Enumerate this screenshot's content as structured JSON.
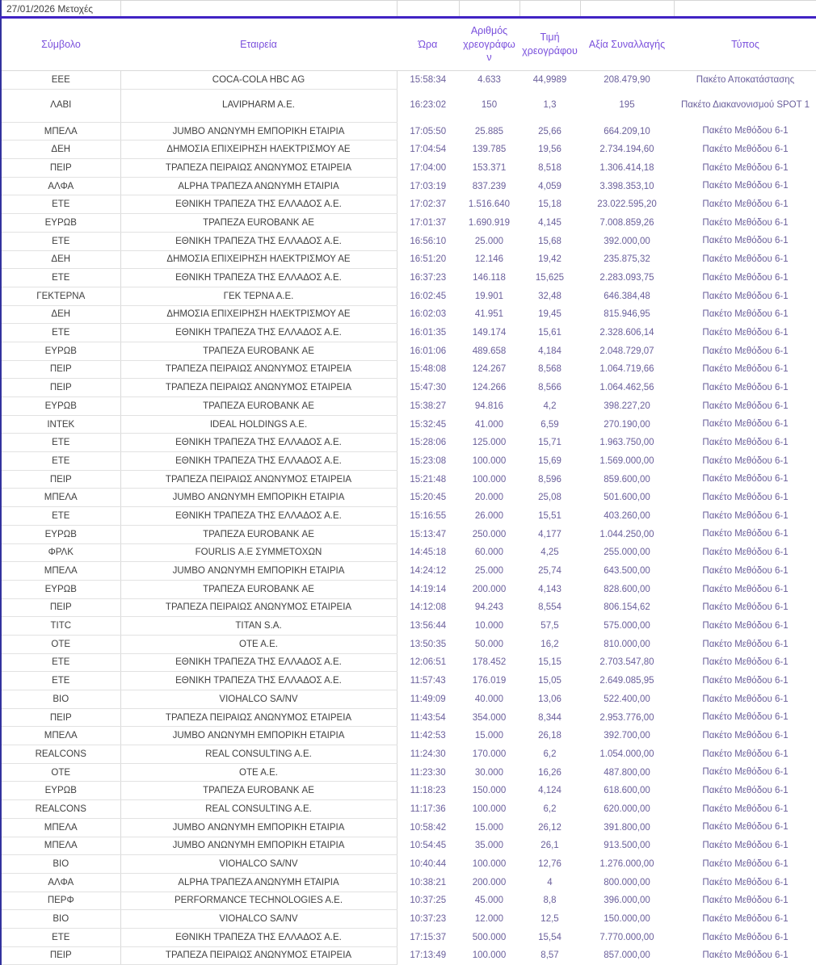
{
  "top_bar": {
    "label": "27/01/2026 Μετοχές"
  },
  "colors": {
    "rule": "#4123c4",
    "header_text": "#7a50dc",
    "numeric_text": "#6a5f9b",
    "body_text": "#404040",
    "grid_line": "#d9d9d9",
    "left_edge": "#32329e"
  },
  "table": {
    "columns": [
      "Σύμβολο",
      "Εταιρεία",
      "Ώρα",
      "Αριθμός χρεογράφων",
      "Τιμή χρεογράφου",
      "Αξία Συναλλαγής",
      "Τύπος"
    ],
    "rows": [
      [
        "ΕΕΕ",
        "COCA-COLA HBC AG",
        "15:58:34",
        "4.633",
        "44,9989",
        "208.479,90",
        "Πακέτο Αποκατάστασης"
      ],
      [
        "ΛΑΒΙ",
        "LAVIPHARM A.E.",
        "16:23:02",
        "150",
        "1,3",
        "195",
        "Πακέτο Διακανονισμού SPOT 1"
      ],
      [
        "ΜΠΕΛΑ",
        "JUMBO ΑΝΩΝΥΜΗ ΕΜΠΟΡΙΚΗ ΕΤΑΙΡΙΑ",
        "17:05:50",
        "25.885",
        "25,66",
        "664.209,10",
        "Πακέτο Μεθόδου 6-1"
      ],
      [
        "ΔΕΗ",
        "ΔΗΜΟΣΙΑ ΕΠΙΧΕΙΡΗΣΗ ΗΛΕΚΤΡΙΣΜΟΥ ΑΕ",
        "17:04:54",
        "139.785",
        "19,56",
        "2.734.194,60",
        "Πακέτο Μεθόδου 6-1"
      ],
      [
        "ΠΕΙΡ",
        "ΤΡΑΠΕΖΑ ΠΕΙΡΑΙΩΣ ΑΝΩΝΥΜΟΣ ΕΤΑΙΡΕΙΑ",
        "17:04:00",
        "153.371",
        "8,518",
        "1.306.414,18",
        "Πακέτο Μεθόδου 6-1"
      ],
      [
        "ΑΛΦΑ",
        "ALPHA ΤΡΑΠΕΖΑ ΑΝΩΝΥΜΗ ΕΤΑΙΡΙΑ",
        "17:03:19",
        "837.239",
        "4,059",
        "3.398.353,10",
        "Πακέτο Μεθόδου 6-1"
      ],
      [
        "ΕΤΕ",
        "ΕΘΝΙΚΗ ΤΡΑΠΕΖΑ ΤΗΣ ΕΛΛΑΔΟΣ Α.Ε.",
        "17:02:37",
        "1.516.640",
        "15,18",
        "23.022.595,20",
        "Πακέτο Μεθόδου 6-1"
      ],
      [
        "ΕΥΡΩΒ",
        "ΤΡΑΠΕΖΑ EUROBANK ΑΕ",
        "17:01:37",
        "1.690.919",
        "4,145",
        "7.008.859,26",
        "Πακέτο Μεθόδου 6-1"
      ],
      [
        "ΕΤΕ",
        "ΕΘΝΙΚΗ ΤΡΑΠΕΖΑ ΤΗΣ ΕΛΛΑΔΟΣ Α.Ε.",
        "16:56:10",
        "25.000",
        "15,68",
        "392.000,00",
        "Πακέτο Μεθόδου 6-1"
      ],
      [
        "ΔΕΗ",
        "ΔΗΜΟΣΙΑ ΕΠΙΧΕΙΡΗΣΗ ΗΛΕΚΤΡΙΣΜΟΥ ΑΕ",
        "16:51:20",
        "12.146",
        "19,42",
        "235.875,32",
        "Πακέτο Μεθόδου 6-1"
      ],
      [
        "ΕΤΕ",
        "ΕΘΝΙΚΗ ΤΡΑΠΕΖΑ ΤΗΣ ΕΛΛΑΔΟΣ Α.Ε.",
        "16:37:23",
        "146.118",
        "15,625",
        "2.283.093,75",
        "Πακέτο Μεθόδου 6-1"
      ],
      [
        "ΓΕΚΤΕΡΝΑ",
        "ΓΕΚ ΤΕΡΝΑ Α.Ε.",
        "16:02:45",
        "19.901",
        "32,48",
        "646.384,48",
        "Πακέτο Μεθόδου 6-1"
      ],
      [
        "ΔΕΗ",
        "ΔΗΜΟΣΙΑ ΕΠΙΧΕΙΡΗΣΗ ΗΛΕΚΤΡΙΣΜΟΥ ΑΕ",
        "16:02:03",
        "41.951",
        "19,45",
        "815.946,95",
        "Πακέτο Μεθόδου 6-1"
      ],
      [
        "ΕΤΕ",
        "ΕΘΝΙΚΗ ΤΡΑΠΕΖΑ ΤΗΣ ΕΛΛΑΔΟΣ Α.Ε.",
        "16:01:35",
        "149.174",
        "15,61",
        "2.328.606,14",
        "Πακέτο Μεθόδου 6-1"
      ],
      [
        "ΕΥΡΩΒ",
        "ΤΡΑΠΕΖΑ EUROBANK ΑΕ",
        "16:01:06",
        "489.658",
        "4,184",
        "2.048.729,07",
        "Πακέτο Μεθόδου 6-1"
      ],
      [
        "ΠΕΙΡ",
        "ΤΡΑΠΕΖΑ ΠΕΙΡΑΙΩΣ ΑΝΩΝΥΜΟΣ ΕΤΑΙΡΕΙΑ",
        "15:48:08",
        "124.267",
        "8,568",
        "1.064.719,66",
        "Πακέτο Μεθόδου 6-1"
      ],
      [
        "ΠΕΙΡ",
        "ΤΡΑΠΕΖΑ ΠΕΙΡΑΙΩΣ ΑΝΩΝΥΜΟΣ ΕΤΑΙΡΕΙΑ",
        "15:47:30",
        "124.266",
        "8,566",
        "1.064.462,56",
        "Πακέτο Μεθόδου 6-1"
      ],
      [
        "ΕΥΡΩΒ",
        "ΤΡΑΠΕΖΑ EUROBANK ΑΕ",
        "15:38:27",
        "94.816",
        "4,2",
        "398.227,20",
        "Πακέτο Μεθόδου 6-1"
      ],
      [
        "ΙΝΤΕΚ",
        "IDEAL HOLDINGS A.E.",
        "15:32:45",
        "41.000",
        "6,59",
        "270.190,00",
        "Πακέτο Μεθόδου 6-1"
      ],
      [
        "ΕΤΕ",
        "ΕΘΝΙΚΗ ΤΡΑΠΕΖΑ ΤΗΣ ΕΛΛΑΔΟΣ Α.Ε.",
        "15:28:06",
        "125.000",
        "15,71",
        "1.963.750,00",
        "Πακέτο Μεθόδου 6-1"
      ],
      [
        "ΕΤΕ",
        "ΕΘΝΙΚΗ ΤΡΑΠΕΖΑ ΤΗΣ ΕΛΛΑΔΟΣ Α.Ε.",
        "15:23:08",
        "100.000",
        "15,69",
        "1.569.000,00",
        "Πακέτο Μεθόδου 6-1"
      ],
      [
        "ΠΕΙΡ",
        "ΤΡΑΠΕΖΑ ΠΕΙΡΑΙΩΣ ΑΝΩΝΥΜΟΣ ΕΤΑΙΡΕΙΑ",
        "15:21:48",
        "100.000",
        "8,596",
        "859.600,00",
        "Πακέτο Μεθόδου 6-1"
      ],
      [
        "ΜΠΕΛΑ",
        "JUMBO ΑΝΩΝΥΜΗ ΕΜΠΟΡΙΚΗ ΕΤΑΙΡΙΑ",
        "15:20:45",
        "20.000",
        "25,08",
        "501.600,00",
        "Πακέτο Μεθόδου 6-1"
      ],
      [
        "ΕΤΕ",
        "ΕΘΝΙΚΗ ΤΡΑΠΕΖΑ ΤΗΣ ΕΛΛΑΔΟΣ Α.Ε.",
        "15:16:55",
        "26.000",
        "15,51",
        "403.260,00",
        "Πακέτο Μεθόδου 6-1"
      ],
      [
        "ΕΥΡΩΒ",
        "ΤΡΑΠΕΖΑ EUROBANK ΑΕ",
        "15:13:47",
        "250.000",
        "4,177",
        "1.044.250,00",
        "Πακέτο Μεθόδου 6-1"
      ],
      [
        "ΦΡΛΚ",
        "FOURLIS Α.Ε ΣΥΜΜΕΤΟΧΩΝ",
        "14:45:18",
        "60.000",
        "4,25",
        "255.000,00",
        "Πακέτο Μεθόδου 6-1"
      ],
      [
        "ΜΠΕΛΑ",
        "JUMBO ΑΝΩΝΥΜΗ ΕΜΠΟΡΙΚΗ ΕΤΑΙΡΙΑ",
        "14:24:12",
        "25.000",
        "25,74",
        "643.500,00",
        "Πακέτο Μεθόδου 6-1"
      ],
      [
        "ΕΥΡΩΒ",
        "ΤΡΑΠΕΖΑ EUROBANK ΑΕ",
        "14:19:14",
        "200.000",
        "4,143",
        "828.600,00",
        "Πακέτο Μεθόδου 6-1"
      ],
      [
        "ΠΕΙΡ",
        "ΤΡΑΠΕΖΑ ΠΕΙΡΑΙΩΣ ΑΝΩΝΥΜΟΣ ΕΤΑΙΡΕΙΑ",
        "14:12:08",
        "94.243",
        "8,554",
        "806.154,62",
        "Πακέτο Μεθόδου 6-1"
      ],
      [
        "ΤΙΤC",
        "TITAN S.A.",
        "13:56:44",
        "10.000",
        "57,5",
        "575.000,00",
        "Πακέτο Μεθόδου 6-1"
      ],
      [
        "ΟΤΕ",
        "ΟΤΕ Α.Ε.",
        "13:50:35",
        "50.000",
        "16,2",
        "810.000,00",
        "Πακέτο Μεθόδου 6-1"
      ],
      [
        "ΕΤΕ",
        "ΕΘΝΙΚΗ ΤΡΑΠΕΖΑ ΤΗΣ ΕΛΛΑΔΟΣ Α.Ε.",
        "12:06:51",
        "178.452",
        "15,15",
        "2.703.547,80",
        "Πακέτο Μεθόδου 6-1"
      ],
      [
        "ΕΤΕ",
        "ΕΘΝΙΚΗ ΤΡΑΠΕΖΑ ΤΗΣ ΕΛΛΑΔΟΣ Α.Ε.",
        "11:57:43",
        "176.019",
        "15,05",
        "2.649.085,95",
        "Πακέτο Μεθόδου 6-1"
      ],
      [
        "ΒΙΟ",
        "VIOHALCO SA/NV",
        "11:49:09",
        "40.000",
        "13,06",
        "522.400,00",
        "Πακέτο Μεθόδου 6-1"
      ],
      [
        "ΠΕΙΡ",
        "ΤΡΑΠΕΖΑ ΠΕΙΡΑΙΩΣ ΑΝΩΝΥΜΟΣ ΕΤΑΙΡΕΙΑ",
        "11:43:54",
        "354.000",
        "8,344",
        "2.953.776,00",
        "Πακέτο Μεθόδου 6-1"
      ],
      [
        "ΜΠΕΛΑ",
        "JUMBO ΑΝΩΝΥΜΗ ΕΜΠΟΡΙΚΗ ΕΤΑΙΡΙΑ",
        "11:42:53",
        "15.000",
        "26,18",
        "392.700,00",
        "Πακέτο Μεθόδου 6-1"
      ],
      [
        "REALCONS",
        "REAL CONSULTING A.E.",
        "11:24:30",
        "170.000",
        "6,2",
        "1.054.000,00",
        "Πακέτο Μεθόδου 6-1"
      ],
      [
        "ΟΤΕ",
        "ΟΤΕ Α.Ε.",
        "11:23:30",
        "30.000",
        "16,26",
        "487.800,00",
        "Πακέτο Μεθόδου 6-1"
      ],
      [
        "ΕΥΡΩΒ",
        "ΤΡΑΠΕΖΑ EUROBANK ΑΕ",
        "11:18:23",
        "150.000",
        "4,124",
        "618.600,00",
        "Πακέτο Μεθόδου 6-1"
      ],
      [
        "REALCONS",
        "REAL CONSULTING A.E.",
        "11:17:36",
        "100.000",
        "6,2",
        "620.000,00",
        "Πακέτο Μεθόδου 6-1"
      ],
      [
        "ΜΠΕΛΑ",
        "JUMBO ΑΝΩΝΥΜΗ ΕΜΠΟΡΙΚΗ ΕΤΑΙΡΙΑ",
        "10:58:42",
        "15.000",
        "26,12",
        "391.800,00",
        "Πακέτο Μεθόδου 6-1"
      ],
      [
        "ΜΠΕΛΑ",
        "JUMBO ΑΝΩΝΥΜΗ ΕΜΠΟΡΙΚΗ ΕΤΑΙΡΙΑ",
        "10:54:45",
        "35.000",
        "26,1",
        "913.500,00",
        "Πακέτο Μεθόδου 6-1"
      ],
      [
        "ΒΙΟ",
        "VIOHALCO SA/NV",
        "10:40:44",
        "100.000",
        "12,76",
        "1.276.000,00",
        "Πακέτο Μεθόδου 6-1"
      ],
      [
        "ΑΛΦΑ",
        "ALPHA ΤΡΑΠΕΖΑ ΑΝΩΝΥΜΗ ΕΤΑΙΡΙΑ",
        "10:38:21",
        "200.000",
        "4",
        "800.000,00",
        "Πακέτο Μεθόδου 6-1"
      ],
      [
        "ΠΕΡΦ",
        "PERFORMANCE TECHNOLOGIES A.E.",
        "10:37:25",
        "45.000",
        "8,8",
        "396.000,00",
        "Πακέτο Μεθόδου 6-1"
      ],
      [
        "ΒΙΟ",
        "VIOHALCO SA/NV",
        "10:37:23",
        "12.000",
        "12,5",
        "150.000,00",
        "Πακέτο Μεθόδου 6-1"
      ],
      [
        "ΕΤΕ",
        "ΕΘΝΙΚΗ ΤΡΑΠΕΖΑ ΤΗΣ ΕΛΛΑΔΟΣ Α.Ε.",
        "17:15:37",
        "500.000",
        "15,54",
        "7.770.000,00",
        "Πακέτο Μεθόδου 6-1"
      ],
      [
        "ΠΕΙΡ",
        "ΤΡΑΠΕΖΑ ΠΕΙΡΑΙΩΣ ΑΝΩΝΥΜΟΣ ΕΤΑΙΡΕΙΑ",
        "17:13:49",
        "100.000",
        "8,57",
        "857.000,00",
        "Πακέτο Μεθόδου 6-1"
      ]
    ]
  }
}
